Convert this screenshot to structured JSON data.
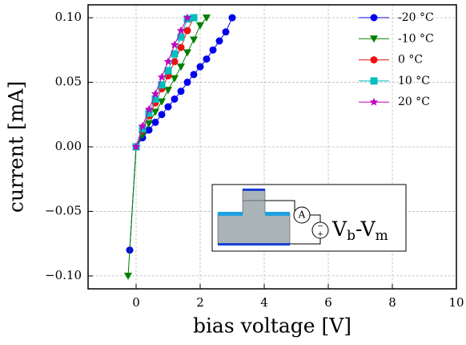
{
  "chart_data": {
    "type": "line",
    "xlabel": "bias voltage [V]",
    "ylabel": "current [mA]",
    "xlim": [
      -1.5,
      10
    ],
    "ylim": [
      -0.11,
      0.11
    ],
    "xticks": [
      0,
      2,
      4,
      6,
      8,
      10
    ],
    "yticks": [
      {
        "value": 0.1,
        "label": "0.10"
      },
      0.05,
      {
        "value": 0,
        "label": "0.00"
      },
      {
        "value": -0.05,
        "label": "−0.05"
      },
      {
        "value": -0.1,
        "label": "−0.10"
      }
    ],
    "grid": true,
    "legend": "upper right",
    "series": [
      {
        "name": "-20 °C",
        "color": "#0000ee",
        "marker": "circle",
        "x": [
          -0.2,
          0,
          0.2,
          0.4,
          0.6,
          0.8,
          1.0,
          1.2,
          1.4,
          1.6,
          1.8,
          2.0,
          2.2,
          2.4,
          2.6,
          2.8,
          3.0
        ],
        "values": [
          -0.08,
          0,
          0.007,
          0.013,
          0.019,
          0.025,
          0.031,
          0.037,
          0.043,
          0.05,
          0.056,
          0.062,
          0.068,
          0.075,
          0.082,
          0.089,
          0.1
        ]
      },
      {
        "name": "-10 °C",
        "color": "#007f00",
        "marker": "triangle",
        "x": [
          -0.25,
          0,
          0.2,
          0.4,
          0.6,
          0.8,
          1.0,
          1.2,
          1.4,
          1.6,
          1.8,
          2.0,
          2.2
        ],
        "values": [
          -0.1,
          0,
          0.009,
          0.018,
          0.027,
          0.035,
          0.044,
          0.053,
          0.062,
          0.073,
          0.083,
          0.094,
          0.1
        ]
      },
      {
        "name": "0 °C",
        "color": "#ee1111",
        "marker": "circle",
        "x": [
          0,
          0.2,
          0.4,
          0.6,
          0.8,
          1.0,
          1.2,
          1.4,
          1.6,
          1.8
        ],
        "values": [
          0,
          0.013,
          0.024,
          0.034,
          0.045,
          0.055,
          0.066,
          0.077,
          0.09,
          0.1
        ]
      },
      {
        "name": "10 °C",
        "color": "#00bfbf",
        "marker": "square",
        "x": [
          0,
          0.2,
          0.4,
          0.6,
          0.8,
          1.0,
          1.2,
          1.4,
          1.6,
          1.8
        ],
        "values": [
          0,
          0.014,
          0.026,
          0.037,
          0.048,
          0.059,
          0.072,
          0.085,
          0.099,
          0.1
        ]
      },
      {
        "name": "20 °C",
        "color": "#bf00bf",
        "marker": "star",
        "x": [
          0,
          0.2,
          0.4,
          0.6,
          0.8,
          1.0,
          1.2,
          1.4,
          1.6
        ],
        "values": [
          0,
          0.016,
          0.029,
          0.041,
          0.054,
          0.066,
          0.079,
          0.09,
          0.1
        ]
      }
    ]
  },
  "inset": {
    "ammeter": "A",
    "minus": "−",
    "plus": "+",
    "v1": "V",
    "sub1": "b",
    "v2": "-V",
    "sub2": "m"
  }
}
